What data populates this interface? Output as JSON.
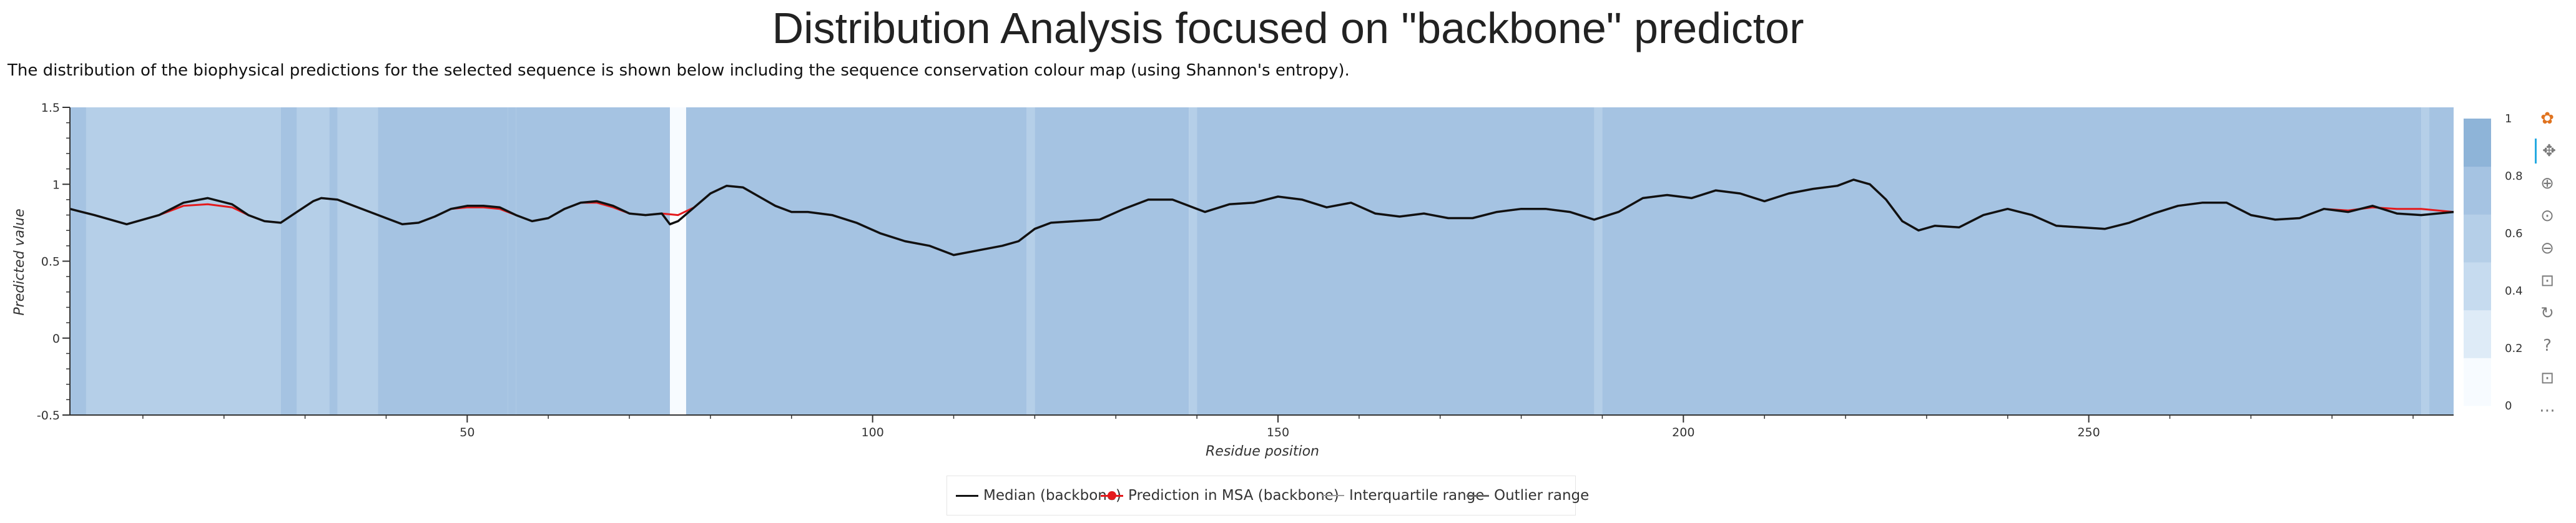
{
  "title": "Distribution Analysis focused on \"backbone\" predictor",
  "description": "The distribution of the biophysical predictions for the selected sequence is shown below including the sequence conservation colour map (using Shannon's entropy).",
  "colors": {
    "median": "#111111",
    "prediction": "#e41a1c",
    "interquartile": "#9a9a9a",
    "outlier": "#666666",
    "conservation_palette": [
      "#f7fbff",
      "#deebf7",
      "#c6dbef",
      "#b5cfe8",
      "#a5c3e2",
      "#8eb4d8"
    ]
  },
  "chart_data": {
    "type": "line",
    "xlabel": "Residue position",
    "ylabel": "Predicted value",
    "xlim": [
      1,
      295
    ],
    "ylim": [
      -0.5,
      1.5
    ],
    "x_ticks": [
      50,
      100,
      150,
      200,
      250
    ],
    "y_ticks": [
      -0.5,
      0,
      0.5,
      1,
      1.5
    ],
    "grid": false,
    "legend_position": "bottom",
    "colorbar": {
      "ticks": [
        0,
        0.2,
        0.4,
        0.6,
        0.8,
        1
      ],
      "range": [
        0,
        1
      ]
    },
    "conservation": [
      {
        "start": 1,
        "end": 3,
        "value": 0.78
      },
      {
        "start": 3,
        "end": 27,
        "value": 0.63
      },
      {
        "start": 27,
        "end": 29,
        "value": 0.7
      },
      {
        "start": 29,
        "end": 33,
        "value": 0.63
      },
      {
        "start": 33,
        "end": 34,
        "value": 0.78
      },
      {
        "start": 34,
        "end": 39,
        "value": 0.63
      },
      {
        "start": 39,
        "end": 55,
        "value": 0.8
      },
      {
        "start": 55,
        "end": 56,
        "value": 0.7
      },
      {
        "start": 56,
        "end": 75,
        "value": 0.8
      },
      {
        "start": 75,
        "end": 77,
        "value": 0.05
      },
      {
        "start": 77,
        "end": 119,
        "value": 0.8
      },
      {
        "start": 119,
        "end": 120,
        "value": 0.62
      },
      {
        "start": 120,
        "end": 139,
        "value": 0.8
      },
      {
        "start": 139,
        "end": 140,
        "value": 0.68
      },
      {
        "start": 140,
        "end": 189,
        "value": 0.8
      },
      {
        "start": 189,
        "end": 190,
        "value": 0.68
      },
      {
        "start": 190,
        "end": 291,
        "value": 0.8
      },
      {
        "start": 291,
        "end": 292,
        "value": 0.68
      },
      {
        "start": 292,
        "end": 295,
        "value": 0.8
      }
    ],
    "series": [
      {
        "name": "Median (backbone)",
        "x": [
          1,
          4,
          8,
          12,
          15,
          18,
          21,
          23,
          25,
          27,
          29,
          31,
          32,
          34,
          36,
          38,
          40,
          42,
          44,
          46,
          48,
          50,
          52,
          54,
          56,
          58,
          60,
          62,
          64,
          66,
          68,
          70,
          72,
          74,
          75,
          76,
          78,
          80,
          82,
          84,
          86,
          88,
          90,
          92,
          95,
          98,
          101,
          104,
          107,
          110,
          113,
          116,
          118,
          120,
          122,
          125,
          128,
          131,
          134,
          137,
          139,
          141,
          144,
          147,
          150,
          153,
          156,
          159,
          162,
          165,
          168,
          171,
          174,
          177,
          180,
          183,
          186,
          189,
          192,
          195,
          198,
          201,
          204,
          207,
          210,
          213,
          216,
          219,
          221,
          223,
          225,
          227,
          229,
          231,
          234,
          237,
          240,
          243,
          246,
          249,
          252,
          255,
          258,
          261,
          264,
          267,
          270,
          273,
          276,
          279,
          282,
          285,
          288,
          291,
          295
        ],
        "y": [
          0.84,
          0.8,
          0.74,
          0.8,
          0.88,
          0.91,
          0.87,
          0.8,
          0.76,
          0.75,
          0.82,
          0.89,
          0.91,
          0.9,
          0.86,
          0.82,
          0.78,
          0.74,
          0.75,
          0.79,
          0.84,
          0.86,
          0.86,
          0.85,
          0.8,
          0.76,
          0.78,
          0.84,
          0.88,
          0.89,
          0.86,
          0.81,
          0.8,
          0.81,
          0.74,
          0.76,
          0.85,
          0.94,
          0.99,
          0.98,
          0.92,
          0.86,
          0.82,
          0.82,
          0.8,
          0.75,
          0.68,
          0.63,
          0.6,
          0.54,
          0.57,
          0.6,
          0.63,
          0.71,
          0.75,
          0.76,
          0.77,
          0.84,
          0.9,
          0.9,
          0.86,
          0.82,
          0.87,
          0.88,
          0.92,
          0.9,
          0.85,
          0.88,
          0.81,
          0.79,
          0.81,
          0.78,
          0.78,
          0.82,
          0.84,
          0.84,
          0.82,
          0.77,
          0.82,
          0.91,
          0.93,
          0.91,
          0.96,
          0.94,
          0.89,
          0.94,
          0.97,
          0.99,
          1.03,
          1.0,
          0.9,
          0.76,
          0.7,
          0.73,
          0.72,
          0.8,
          0.84,
          0.8,
          0.73,
          0.72,
          0.71,
          0.75,
          0.81,
          0.86,
          0.88,
          0.88,
          0.8,
          0.77,
          0.78,
          0.84,
          0.82,
          0.86,
          0.81,
          0.8,
          0.82
        ]
      },
      {
        "name": "Prediction in MSA (backbone)",
        "x": [
          1,
          4,
          8,
          12,
          15,
          18,
          21,
          23,
          25,
          27,
          29,
          31,
          32,
          34,
          36,
          38,
          40,
          42,
          44,
          46,
          48,
          50,
          52,
          54,
          56,
          58,
          60,
          62,
          64,
          66,
          68,
          70,
          72,
          74,
          76,
          78,
          80,
          82,
          84,
          86,
          88,
          90,
          92,
          95,
          98,
          101,
          104,
          107,
          110,
          113,
          116,
          118,
          120,
          122,
          125,
          128,
          131,
          134,
          137,
          139,
          141,
          144,
          147,
          150,
          153,
          156,
          159,
          162,
          165,
          168,
          171,
          174,
          177,
          180,
          183,
          186,
          189,
          192,
          195,
          198,
          201,
          204,
          207,
          210,
          213,
          216,
          219,
          221,
          223,
          225,
          227,
          229,
          231,
          234,
          237,
          240,
          243,
          246,
          249,
          252,
          255,
          258,
          261,
          264,
          267,
          270,
          273,
          276,
          279,
          282,
          285,
          288,
          291,
          295
        ],
        "y": [
          0.84,
          0.8,
          0.74,
          0.8,
          0.86,
          0.87,
          0.85,
          0.8,
          0.76,
          0.75,
          0.82,
          0.89,
          0.91,
          0.9,
          0.86,
          0.82,
          0.78,
          0.74,
          0.75,
          0.79,
          0.84,
          0.85,
          0.85,
          0.84,
          0.8,
          0.76,
          0.78,
          0.84,
          0.88,
          0.88,
          0.85,
          0.81,
          0.8,
          0.81,
          0.8,
          0.85,
          0.94,
          0.99,
          0.98,
          0.92,
          0.86,
          0.82,
          0.82,
          0.8,
          0.75,
          0.68,
          0.63,
          0.6,
          0.54,
          0.57,
          0.6,
          0.63,
          0.71,
          0.75,
          0.76,
          0.77,
          0.84,
          0.9,
          0.9,
          0.86,
          0.82,
          0.87,
          0.88,
          0.92,
          0.9,
          0.85,
          0.88,
          0.81,
          0.79,
          0.81,
          0.78,
          0.78,
          0.82,
          0.84,
          0.84,
          0.82,
          0.77,
          0.82,
          0.91,
          0.93,
          0.91,
          0.96,
          0.94,
          0.89,
          0.94,
          0.97,
          0.99,
          1.03,
          1.0,
          0.9,
          0.76,
          0.7,
          0.73,
          0.72,
          0.8,
          0.84,
          0.8,
          0.73,
          0.72,
          0.71,
          0.75,
          0.81,
          0.86,
          0.88,
          0.88,
          0.8,
          0.77,
          0.78,
          0.84,
          0.83,
          0.85,
          0.84,
          0.84,
          0.82
        ]
      }
    ]
  },
  "legend": [
    {
      "label": "Median (backbone)",
      "kind": "line",
      "color_key": "median"
    },
    {
      "label": "Prediction in MSA (backbone)",
      "kind": "line-dot",
      "color_key": "prediction"
    },
    {
      "label": "Interquartile range",
      "kind": "line",
      "color_key": "interquartile"
    },
    {
      "label": "Outlier range",
      "kind": "line",
      "color_key": "outlier"
    }
  ],
  "toolbar": [
    {
      "icon": "bokeh-logo-icon",
      "glyph": "✿"
    },
    {
      "icon": "pan-icon",
      "glyph": "✥"
    },
    {
      "icon": "box-zoom-icon",
      "glyph": "⊕"
    },
    {
      "icon": "wheel-zoom-icon",
      "glyph": "⊙"
    },
    {
      "icon": "zoom-out-icon",
      "glyph": "⊖"
    },
    {
      "icon": "save-icon",
      "glyph": "⊡"
    },
    {
      "icon": "reset-icon",
      "glyph": "↻"
    },
    {
      "icon": "help-icon",
      "glyph": "?"
    },
    {
      "icon": "save-icon",
      "glyph": "⊡"
    },
    {
      "icon": "more-icon",
      "glyph": "⋯"
    }
  ]
}
